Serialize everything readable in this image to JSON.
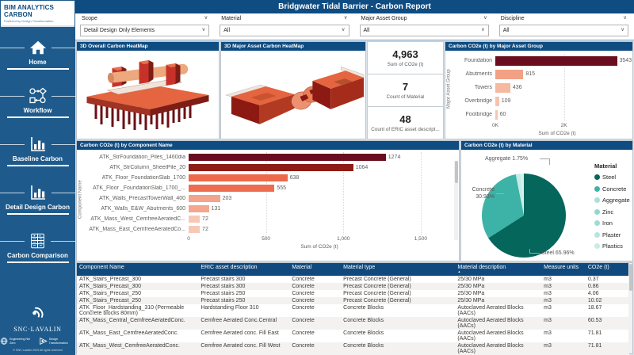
{
  "app": {
    "title": "Bridgwater Tidal Barrier - Carbon Report"
  },
  "icons": {
    "chevron": "∨",
    "sort_asc": "▲"
  },
  "sidebar": {
    "logo_title": "BIM ANALYTICS CARBON",
    "logo_subtitle": "Powered by Design Transformation",
    "nav": [
      {
        "label": "Home",
        "icon": "home-icon"
      },
      {
        "label": "Workflow",
        "icon": "workflow-icon"
      },
      {
        "label": "Baseline Carbon",
        "icon": "bar-chart-icon"
      },
      {
        "label": "Detail Design Carbon",
        "icon": "bar-chart-icon"
      },
      {
        "label": "Carbon Comparison",
        "icon": "comparison-table-icon"
      }
    ],
    "brand": "SNC·LAVALIN",
    "footer_left": "Engineering\nNet Zero",
    "footer_right": "Design\nTransformation",
    "copyright": "© SNC Lavalin 2023 All rights reserved"
  },
  "filters": [
    {
      "label": "Scope",
      "value": "Detail Design Only Elements"
    },
    {
      "label": "Material",
      "value": "All"
    },
    {
      "label": "Major Asset Group",
      "value": "All"
    },
    {
      "label": "Discipline",
      "value": "All"
    }
  ],
  "kpis": [
    {
      "value": "4,963",
      "label": "Sum of CO2e (t)"
    },
    {
      "value": "7",
      "label": "Count of Material"
    },
    {
      "value": "48",
      "label": "Count of ERIC asset descript..."
    }
  ],
  "panels": {
    "overall_heatmap": {
      "title": "3D Overall Carbon HeatMap"
    },
    "major_asset_heatmap": {
      "title": "3D Major Asset Carbon HeatMap"
    },
    "asset_chart": {
      "type": "bar",
      "title": "Carbon CO2e (t) by Major Asset Group",
      "ylabel": "Major Asset Group",
      "xlabel": "Sum of CO2e (t)",
      "xmax": 3600,
      "ticks": [
        {
          "label": "0K",
          "v": 0
        },
        {
          "label": "2K",
          "v": 2000
        }
      ],
      "bars": [
        {
          "label": "Foundation",
          "value": 3543,
          "display": "3543",
          "color": "#6a0e1f"
        },
        {
          "label": "Abutments",
          "value": 815,
          "display": "815",
          "color": "#f2a185"
        },
        {
          "label": "Towers",
          "value": 436,
          "display": "436",
          "color": "#f6b89f"
        },
        {
          "label": "Overbridge",
          "value": 109,
          "display": "109",
          "color": "#f7c3ae"
        },
        {
          "label": "Footbridge",
          "value": 60,
          "display": "60",
          "color": "#f7c5b1"
        }
      ]
    },
    "component_chart": {
      "type": "bar",
      "title": "Carbon CO2e (t) by Component Name",
      "ylabel": "Component Name",
      "xlabel": "Sum of CO2e (t)",
      "xmax": 1690,
      "ticks": [
        {
          "label": "0",
          "v": 0
        },
        {
          "label": "500",
          "v": 500
        },
        {
          "label": "1,000",
          "v": 1000
        },
        {
          "label": "1,500",
          "v": 1500
        }
      ],
      "bars": [
        {
          "label": "ATK_StrFoundation_Piles_1460dia",
          "value": 1274,
          "display": "1274",
          "color": "#6a0e1f"
        },
        {
          "label": "ATK_StrColumn_SheetPile_20",
          "value": 1064,
          "display": "1064",
          "color": "#8c1c15"
        },
        {
          "label": "ATK_Floor_FoundationSlab_1700",
          "value": 638,
          "display": "638",
          "color": "#ec6a4b"
        },
        {
          "label": "ATK_Floor _FoundationSlab_1700_...",
          "value": 555,
          "display": "555",
          "color": "#ed6e4e"
        },
        {
          "label": "ATK_Walls_PrecastTowerWall_400",
          "value": 203,
          "display": "203",
          "color": "#f2a48c"
        },
        {
          "label": "ATK_Walls_E&W_Abutments_600",
          "value": 131,
          "display": "131",
          "color": "#f3a78f"
        },
        {
          "label": "ATK_Mass_West_CemfreeAeratedC...",
          "value": 72,
          "display": "72",
          "color": "#f8c8b6"
        },
        {
          "label": "ATK_Mass_East_CemfreeAeratedCo...",
          "value": 72,
          "display": "72",
          "color": "#f8c8b6"
        }
      ]
    },
    "material_pie": {
      "type": "pie",
      "title": "Carbon CO2e (t) by Material",
      "legend_title": "Material",
      "slices": [
        {
          "name": "Steel",
          "pct": 65.96,
          "color": "#05665b"
        },
        {
          "name": "Concrete",
          "pct": 30.93,
          "color": "#3db3a7"
        },
        {
          "name": "Aggregate",
          "pct": 1.75,
          "color": "#c5ebe6"
        }
      ],
      "remainder_color": "#d8f1ee",
      "callouts": {
        "aggregate": "Aggregate 1.75%",
        "concrete_name": "Concrete",
        "concrete_pct": "30.93%",
        "steel": "Steel 65.96%"
      },
      "legend": [
        {
          "name": "Steel",
          "color": "#05665b"
        },
        {
          "name": "Concrete",
          "color": "#3db3a7"
        },
        {
          "name": "Aggregate",
          "color": "#a9e0da"
        },
        {
          "name": "Zinc",
          "color": "#90d8d0"
        },
        {
          "name": "Iron",
          "color": "#9fdcd5"
        },
        {
          "name": "Plaster",
          "color": "#b5e5df"
        },
        {
          "name": "Plastics",
          "color": "#c8ebe6"
        }
      ]
    }
  },
  "table": {
    "columns": [
      {
        "label": "Component Name"
      },
      {
        "label": "ERIC asset description"
      },
      {
        "label": "Material"
      },
      {
        "label": "Material type"
      },
      {
        "label": "Material description",
        "sorted": true
      },
      {
        "label": "Measure units"
      },
      {
        "label": "CO2e (t)"
      }
    ],
    "rows": [
      [
        "ATK_Stairs_Precast_300",
        "Precast stairs 300",
        "Concrete",
        "Precast Concrete (General)",
        "25/30 MPa",
        "m3",
        "0.37"
      ],
      [
        "ATK_Stairs_Precast_300",
        "Precast stairs 300",
        "Concrete",
        "Precast Concrete (General)",
        "25/30 MPa",
        "m3",
        "0.86"
      ],
      [
        "ATK_Stairs_Precast_250",
        "Precast stairs 250",
        "Concrete",
        "Precast Concrete (General)",
        "25/30 MPa",
        "m3",
        "4.06"
      ],
      [
        "ATK_Stairs_Precast_250",
        "Precast stairs 250",
        "Concrete",
        "Precast Concrete (General)",
        "25/30 MPa",
        "m3",
        "10.02"
      ],
      [
        "ATK_Floor_Hardstanding_310 (Permeable Concrete blocks 80mm)",
        "Hardstanding Floor 310",
        "Concrete",
        "Concrete Blocks",
        "Autoclaved Aerated Blocks (AACs)",
        "m3",
        "18.67"
      ],
      [
        "ATK_Mass_Central_CemfreeAeratedConc.",
        "Cemfree Aerated Conc.Central",
        "Concrete",
        "Concrete Blocks",
        "Autoclaved Aerated Blocks (AACs)",
        "m3",
        "60.53"
      ],
      [
        "ATK_Mass_East_CemfreeAeratedConc.",
        "Cemfree Aerated conc. Fill East",
        "Concrete",
        "Concrete Blocks",
        "Autoclaved Aerated Blocks (AACs)",
        "m3",
        "71.81"
      ],
      [
        "ATK_Mass_West_CemfreeAeratedConc.",
        "Cemfree Aerated conc. Fill West",
        "Concrete",
        "Concrete Blocks",
        "Autoclaved Aerated Blocks (AACs)",
        "m3",
        "71.81"
      ]
    ]
  }
}
